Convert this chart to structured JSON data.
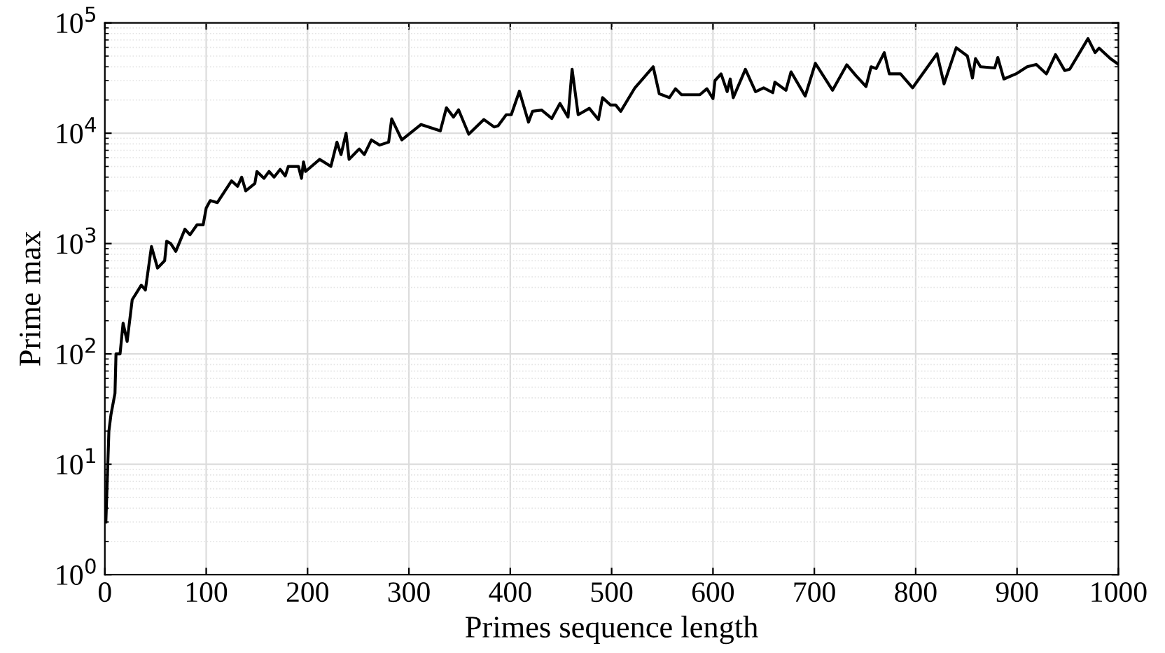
{
  "chart_data": {
    "type": "line",
    "xlabel": "Primes sequence length",
    "ylabel": "Prime max",
    "log": "y",
    "grid": true,
    "marker": "none",
    "line_style": "solid",
    "xlim": [
      0,
      1000
    ],
    "xticks": [
      0,
      100,
      200,
      300,
      400,
      500,
      600,
      700,
      800,
      900,
      1000
    ],
    "ylim": [
      1,
      100000
    ],
    "yticks": [
      {
        "value": 1,
        "label": "10$^{0}$"
      },
      {
        "value": 10,
        "label": "10$^{1}$"
      },
      {
        "value": 100,
        "label": "10$^{2}$"
      },
      {
        "value": 1000,
        "label": "10$^{3}$"
      },
      {
        "value": 10000,
        "label": "10$^{4}$"
      },
      {
        "value": 100000,
        "label": "10$^{5}$"
      }
    ],
    "series": [
      {
        "color": "#000000",
        "x": [
          1,
          4,
          6,
          10,
          11,
          15,
          18,
          22,
          27,
          36,
          40,
          46,
          52,
          59,
          61,
          65,
          70,
          79,
          84,
          91,
          97,
          100,
          104,
          111,
          125,
          131,
          135,
          139,
          148,
          150,
          157,
          162,
          167,
          173,
          178,
          181,
          191,
          194,
          196,
          198,
          212,
          223,
          229,
          233,
          238,
          241,
          251,
          256,
          263,
          271,
          280,
          283,
          293,
          312,
          331,
          337,
          344,
          349,
          359,
          374,
          384,
          388,
          396,
          401,
          409,
          418,
          422,
          431,
          441,
          449,
          457,
          461,
          467,
          478,
          487,
          491,
          499,
          504,
          509,
          523,
          541,
          547,
          557,
          563,
          569,
          587,
          594,
          600,
          602,
          608,
          614,
          617,
          620,
          632,
          642,
          650,
          659,
          661,
          672,
          677,
          691,
          701,
          718,
          732,
          741,
          751,
          756,
          761,
          769,
          774,
          785,
          797,
          821,
          828,
          840,
          851,
          856,
          859,
          864,
          878,
          881,
          887,
          899,
          910,
          919,
          929,
          938,
          947,
          952,
          970,
          977,
          981,
          992,
          1000
        ],
        "values": [
          3,
          20,
          28,
          44,
          100,
          100,
          190,
          130,
          310,
          420,
          380,
          940,
          600,
          700,
          1050,
          1000,
          850,
          1350,
          1200,
          1480,
          1480,
          2100,
          2450,
          2350,
          3700,
          3300,
          4000,
          3000,
          3500,
          4500,
          3900,
          4500,
          4000,
          4700,
          4100,
          5000,
          5000,
          3900,
          5500,
          4500,
          5800,
          5000,
          8300,
          6400,
          10000,
          5800,
          7200,
          6400,
          8700,
          7800,
          8300,
          13500,
          8700,
          12000,
          10500,
          17000,
          14000,
          16300,
          9800,
          13300,
          11400,
          11700,
          14700,
          14700,
          24000,
          12600,
          15800,
          16200,
          13600,
          18600,
          14000,
          38000,
          14700,
          16800,
          13300,
          21000,
          18000,
          18000,
          15800,
          25800,
          40000,
          22800,
          21000,
          25300,
          22300,
          22300,
          25300,
          20600,
          30000,
          34500,
          23800,
          31000,
          21000,
          38000,
          23800,
          25800,
          23300,
          29000,
          24500,
          36000,
          21700,
          43000,
          24500,
          41700,
          33300,
          26500,
          40000,
          38500,
          53700,
          34500,
          34500,
          25800,
          52500,
          28000,
          59500,
          50000,
          31600,
          47500,
          40000,
          39000,
          48500,
          31000,
          34500,
          40000,
          42000,
          34500,
          51500,
          37000,
          38000,
          72000,
          53700,
          59000,
          47500,
          42000
        ]
      }
    ]
  }
}
